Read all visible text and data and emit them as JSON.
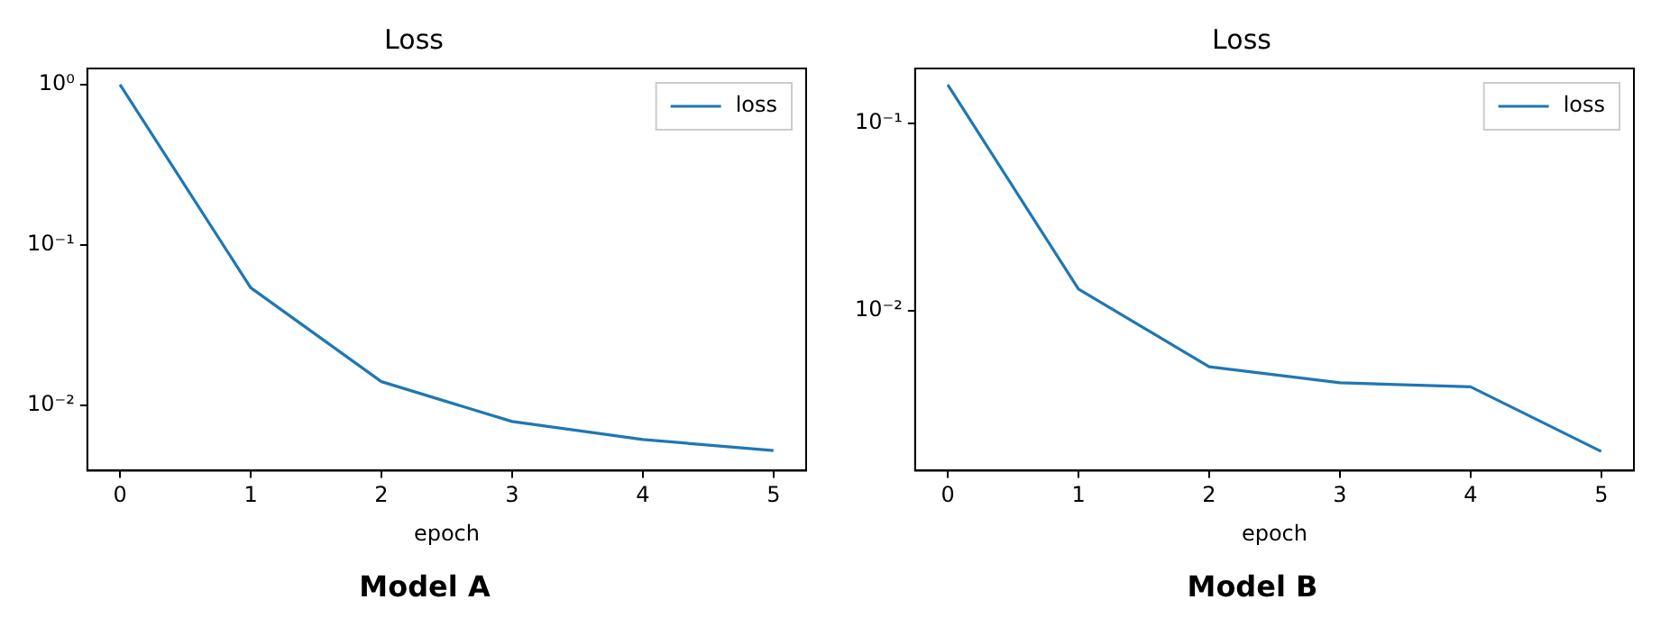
{
  "chart_data": [
    {
      "type": "line",
      "title": "Loss",
      "xlabel": "epoch",
      "annotations": [
        "Model A"
      ],
      "x": [
        0,
        1,
        2,
        3,
        4,
        5
      ],
      "series": [
        {
          "name": "loss",
          "color": "#1f77b4",
          "values": [
            1.0,
            0.054,
            0.014,
            0.0079,
            0.0061,
            0.0052
          ]
        }
      ],
      "log": "y",
      "xlim": [
        -0.25,
        5.25
      ],
      "xticks": [
        0,
        1,
        2,
        3,
        4,
        5
      ],
      "ylim": [
        0.0039,
        1.26
      ],
      "yticks": [
        {
          "value": 1,
          "label": "10⁰"
        },
        {
          "value": 0.1,
          "label": "10⁻¹"
        },
        {
          "value": 0.01,
          "label": "10⁻²"
        }
      ],
      "grid": false,
      "legend": "top right",
      "marker": "none",
      "line_style": "solid"
    },
    {
      "type": "line",
      "title": "Loss",
      "xlabel": "epoch",
      "annotations": [
        "Model B"
      ],
      "x": [
        0,
        1,
        2,
        3,
        4,
        5
      ],
      "series": [
        {
          "name": "loss",
          "color": "#1f77b4",
          "values": [
            0.161,
            0.013,
            0.005,
            0.0041,
            0.0039,
            0.00176
          ]
        }
      ],
      "log": "y",
      "xlim": [
        -0.25,
        5.25
      ],
      "xticks": [
        0,
        1,
        2,
        3,
        4,
        5
      ],
      "ylim": [
        0.00139,
        0.197
      ],
      "yticks": [
        {
          "value": 0.1,
          "label": "10⁻¹"
        },
        {
          "value": 0.01,
          "label": "10⁻²"
        }
      ],
      "grid": false,
      "legend": "top right",
      "marker": "none",
      "line_style": "solid"
    }
  ]
}
